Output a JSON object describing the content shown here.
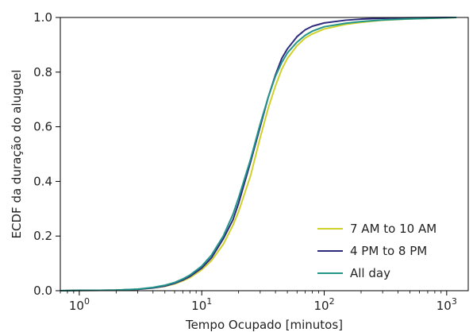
{
  "chart_data": {
    "type": "line",
    "xlabel": "Tempo Ocupado [minutos]",
    "ylabel": "ECDF da duração do aluguel",
    "x_scale": "log",
    "xlim": [
      0.7,
      1500
    ],
    "ylim": [
      0.0,
      1.0
    ],
    "x_ticks": [
      {
        "value": 1,
        "base": "10",
        "exp": "0"
      },
      {
        "value": 10,
        "base": "10",
        "exp": "1"
      },
      {
        "value": 100,
        "base": "10",
        "exp": "2"
      },
      {
        "value": 1000,
        "base": "10",
        "exp": "3"
      }
    ],
    "y_ticks": [
      "0.0",
      "0.2",
      "0.4",
      "0.6",
      "0.8",
      "1.0"
    ],
    "grid": false,
    "legend_position": "lower-right",
    "series": [
      {
        "name": "7 AM to 10 AM",
        "color": "#d0d02a",
        "x": [
          0.7,
          1,
          2,
          3,
          4,
          5,
          6,
          7,
          8,
          10,
          12,
          15,
          18,
          20,
          25,
          30,
          35,
          40,
          45,
          50,
          60,
          70,
          80,
          100,
          150,
          200,
          300,
          500,
          1000,
          1200
        ],
        "y": [
          0.0,
          0.001,
          0.002,
          0.005,
          0.01,
          0.016,
          0.025,
          0.036,
          0.048,
          0.077,
          0.11,
          0.17,
          0.24,
          0.29,
          0.42,
          0.56,
          0.67,
          0.75,
          0.81,
          0.85,
          0.897,
          0.925,
          0.94,
          0.958,
          0.975,
          0.982,
          0.99,
          0.995,
          0.999,
          1.0
        ]
      },
      {
        "name": "4 PM to 8 PM",
        "color": "#2e2b7f",
        "x": [
          0.7,
          1,
          2,
          3,
          4,
          5,
          6,
          7,
          8,
          10,
          12,
          15,
          18,
          20,
          25,
          30,
          35,
          40,
          45,
          50,
          60,
          70,
          80,
          100,
          150,
          200,
          300,
          500,
          1000,
          1200
        ],
        "y": [
          0.0,
          0.001,
          0.002,
          0.005,
          0.01,
          0.017,
          0.027,
          0.039,
          0.052,
          0.083,
          0.12,
          0.19,
          0.26,
          0.32,
          0.47,
          0.6,
          0.71,
          0.79,
          0.85,
          0.885,
          0.93,
          0.955,
          0.968,
          0.98,
          0.99,
          0.994,
          0.997,
          0.999,
          1.0,
          1.0
        ]
      },
      {
        "name": "All day",
        "color": "#24958a",
        "x": [
          0.7,
          1,
          2,
          3,
          4,
          5,
          6,
          7,
          8,
          10,
          12,
          15,
          18,
          20,
          25,
          30,
          35,
          40,
          45,
          50,
          60,
          70,
          80,
          100,
          150,
          200,
          300,
          500,
          1000,
          1200
        ],
        "y": [
          0.0,
          0.001,
          0.002,
          0.006,
          0.012,
          0.02,
          0.03,
          0.043,
          0.057,
          0.09,
          0.13,
          0.2,
          0.28,
          0.34,
          0.48,
          0.61,
          0.71,
          0.785,
          0.835,
          0.87,
          0.91,
          0.935,
          0.95,
          0.966,
          0.979,
          0.985,
          0.991,
          0.995,
          0.999,
          1.0
        ]
      }
    ]
  }
}
